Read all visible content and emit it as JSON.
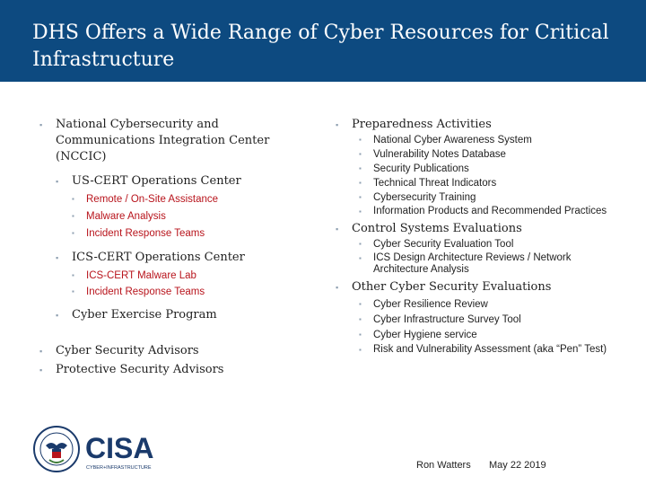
{
  "slide": {
    "title": "DHS Offers a Wide Range of Cyber Resources for Critical Infrastructure"
  },
  "left": {
    "nccic": "National Cybersecurity and Communications Integration Center (NCCIC)",
    "uscert": "US-CERT Operations Center",
    "uscert_items": [
      "Remote / On-Site Assistance",
      "Malware Analysis",
      "Incident Response Teams"
    ],
    "icscert": "ICS-CERT Operations Center",
    "icscert_items": [
      "ICS-CERT Malware Lab",
      "Incident Response Teams"
    ],
    "exercise": "Cyber Exercise Program",
    "advisors": [
      "Cyber Security Advisors",
      "Protective Security Advisors"
    ]
  },
  "right": {
    "preparedness": "Preparedness Activities",
    "preparedness_items": [
      "National Cyber Awareness System",
      "Vulnerability Notes Database",
      "Security Publications",
      "Technical Threat Indicators",
      "Cybersecurity Training",
      "Information Products and Recommended Practices"
    ],
    "control": "Control Systems Evaluations",
    "control_items": [
      "Cyber Security Evaluation Tool",
      "ICS Design Architecture Reviews / Network Architecture Analysis"
    ],
    "other": "Other Cyber Security Evaluations",
    "other_items": [
      "Cyber Resilience Review",
      "Cyber Infrastructure Survey Tool",
      "Cyber Hygiene service",
      "Risk and Vulnerability Assessment (aka “Pen” Test)"
    ]
  },
  "footer": {
    "author": "Ron Watters",
    "date": "May 22 2019"
  },
  "logos": {
    "cisa_text": "CISA",
    "cisa_subtitle": "CYBER+INFRASTRUCTURE"
  },
  "colors": {
    "header_bg": "#0d4a80",
    "accent_red": "#b8141c",
    "bullet": "#8e9fb0"
  }
}
